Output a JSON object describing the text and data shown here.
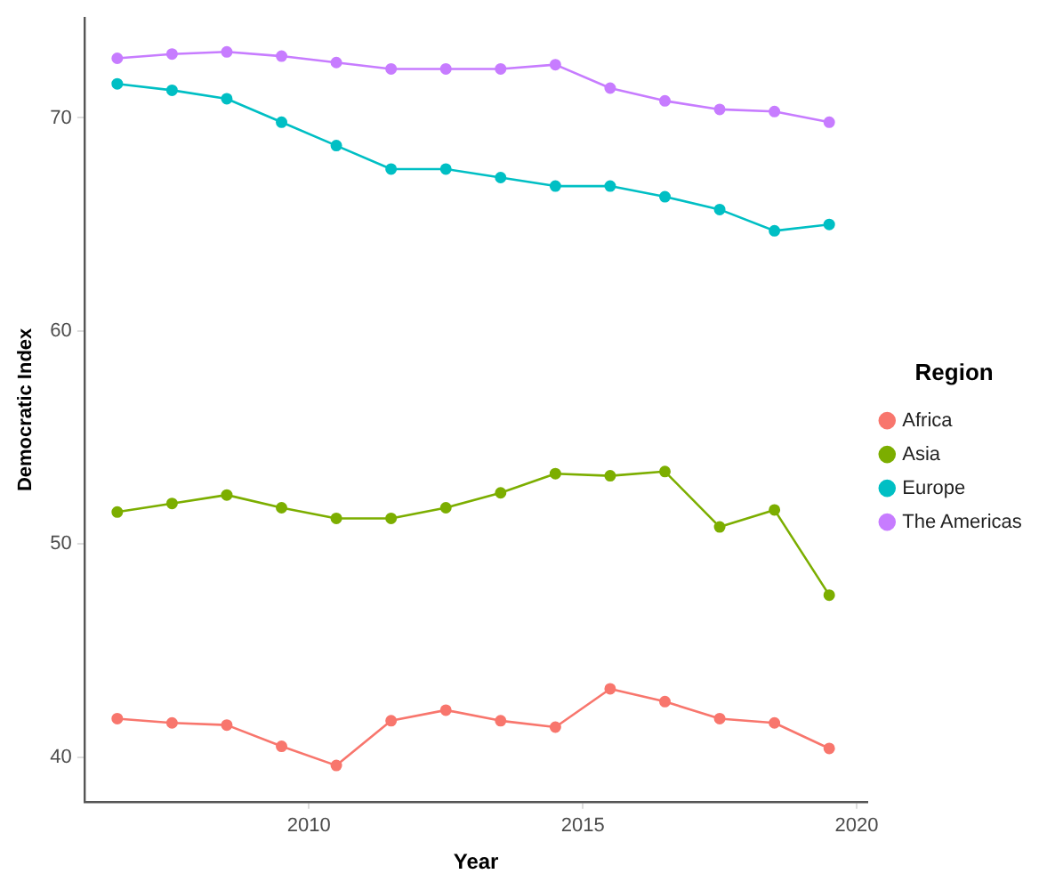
{
  "chart_data": {
    "type": "line",
    "xlabel": "Year",
    "ylabel": "Democratic Index",
    "legend_title": "Region",
    "legend": "right",
    "grid": false,
    "marker": "circle",
    "line_style": "solid",
    "x": [
      2006.5,
      2007.5,
      2008.5,
      2009.5,
      2010.5,
      2011.5,
      2012.5,
      2013.5,
      2014.5,
      2015.5,
      2016.5,
      2017.5,
      2018.5,
      2019.5
    ],
    "xlim": [
      2005.9,
      2020.2
    ],
    "xticks": [
      2010,
      2015,
      2020
    ],
    "ylim": [
      37.9,
      74.7
    ],
    "yticks": [
      40,
      50,
      60,
      70
    ],
    "series": [
      {
        "name": "Africa",
        "color": "#f8766d",
        "values": [
          41.8,
          41.6,
          41.5,
          40.5,
          39.6,
          41.7,
          42.2,
          41.7,
          41.4,
          43.2,
          42.6,
          41.8,
          41.6,
          40.4
        ]
      },
      {
        "name": "Asia",
        "color": "#7cae00",
        "values": [
          51.5,
          51.9,
          52.3,
          51.7,
          51.2,
          51.2,
          51.7,
          52.4,
          53.3,
          53.2,
          53.4,
          50.8,
          51.6,
          47.6
        ]
      },
      {
        "name": "Europe",
        "color": "#00bfc4",
        "values": [
          71.6,
          71.3,
          70.9,
          69.8,
          68.7,
          67.6,
          67.6,
          67.2,
          66.8,
          66.8,
          66.3,
          65.7,
          64.7,
          65.0
        ]
      },
      {
        "name": "The Americas",
        "color": "#c77cff",
        "values": [
          72.8,
          73.0,
          73.1,
          72.9,
          72.6,
          72.3,
          72.3,
          72.3,
          72.5,
          71.4,
          70.8,
          70.4,
          70.3,
          69.8
        ]
      }
    ]
  }
}
